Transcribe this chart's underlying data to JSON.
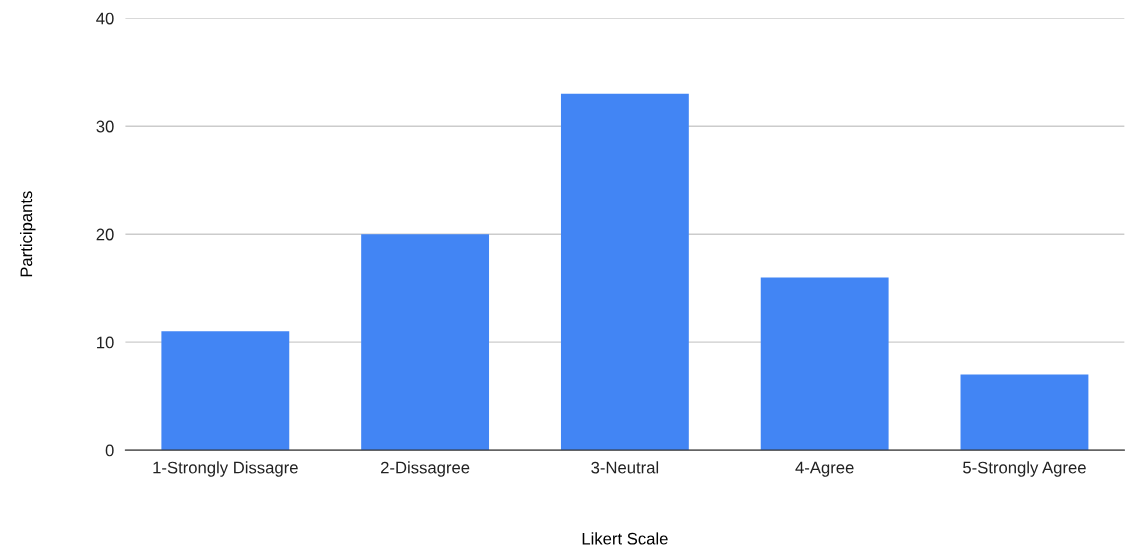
{
  "chart_data": {
    "type": "bar",
    "xlabel": "Likert Scale",
    "ylabel": "Participants",
    "categories": [
      "1-Strongly Dissagre",
      "2-Dissagree",
      "3-Neutral",
      "4-Agree",
      "5-Strongly Agree"
    ],
    "values": [
      11,
      20,
      33,
      16,
      7
    ],
    "color": "#4285f4",
    "ylim": [
      0,
      40
    ],
    "yticks": [
      0,
      10,
      20,
      30,
      40
    ],
    "grid": "y"
  }
}
